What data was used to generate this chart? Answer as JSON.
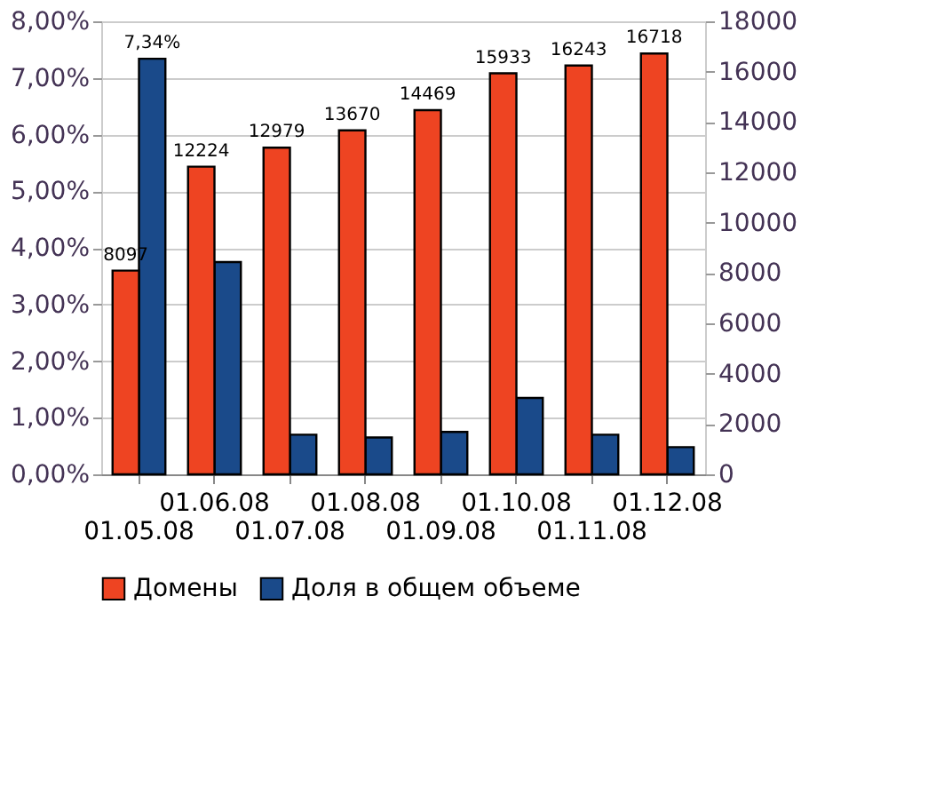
{
  "chart_data": {
    "type": "bar",
    "categories": [
      "01.05.08",
      "01.06.08",
      "01.07.08",
      "01.08.08",
      "01.09.08",
      "01.10.08",
      "01.11.08",
      "01.12.08"
    ],
    "series": [
      {
        "name": "Домены",
        "color": "#ee4422",
        "axis": "y2",
        "values": [
          8097,
          12224,
          12979,
          13670,
          14469,
          15933,
          16243,
          16718
        ],
        "value_labels": [
          "8097",
          "12224",
          "12979",
          "13670",
          "14469",
          "15933",
          "16243",
          "16718"
        ]
      },
      {
        "name": "Доля в общем объеме",
        "color": "#1a4a8a",
        "values": [
          7.34,
          3.75,
          0.7,
          0.65,
          0.75,
          1.35,
          0.7,
          0.48
        ],
        "value_labels": [
          "7,34%",
          null,
          null,
          null,
          null,
          null,
          null,
          null
        ]
      }
    ],
    "ylim": [
      0,
      8
    ],
    "yticks": [
      {
        "value": 0,
        "label": "0,00%"
      },
      {
        "value": 1,
        "label": "1,00%"
      },
      {
        "value": 2,
        "label": "2,00%"
      },
      {
        "value": 3,
        "label": "3,00%"
      },
      {
        "value": 4,
        "label": "4,00%"
      },
      {
        "value": 5,
        "label": "5,00%"
      },
      {
        "value": 6,
        "label": "6,00%"
      },
      {
        "value": 7,
        "label": "7,00%"
      },
      {
        "value": 8,
        "label": "8,00%"
      }
    ],
    "y2lim": [
      0,
      18000
    ],
    "y2ticks": [
      0,
      2000,
      4000,
      6000,
      8000,
      10000,
      12000,
      14000,
      16000,
      18000
    ],
    "grid": "y",
    "legend": "bottom"
  }
}
